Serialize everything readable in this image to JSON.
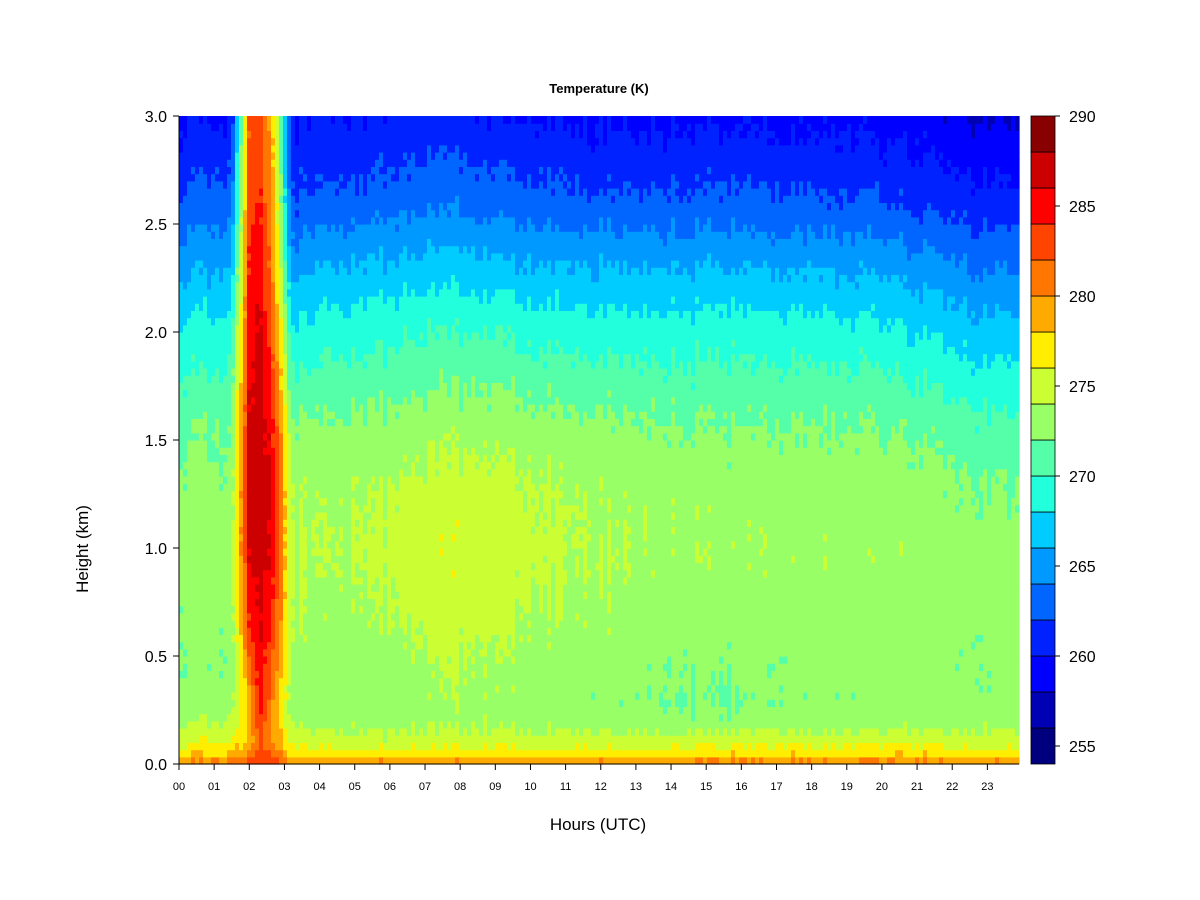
{
  "chart_data": {
    "type": "heatmap",
    "title": "Temperature (K)",
    "xlabel": "Hours (UTC)",
    "ylabel": "Height (km)",
    "x_ticks": [
      "00",
      "01",
      "02",
      "03",
      "04",
      "05",
      "06",
      "07",
      "08",
      "09",
      "10",
      "11",
      "12",
      "13",
      "14",
      "15",
      "16",
      "17",
      "18",
      "19",
      "20",
      "21",
      "22",
      "23"
    ],
    "y_ticks": [
      "0.0",
      "0.5",
      "1.0",
      "1.5",
      "2.0",
      "2.5",
      "3.0"
    ],
    "xlim": [
      0,
      23.9
    ],
    "ylim": [
      0,
      3.0
    ],
    "colorbar": {
      "ticks": [
        "255",
        "260",
        "265",
        "270",
        "275",
        "280",
        "285",
        "290"
      ],
      "range": [
        254,
        290
      ],
      "levels": [
        254,
        256,
        258,
        260,
        262,
        264,
        266,
        268,
        270,
        272,
        274,
        276,
        278,
        280,
        282,
        284,
        286,
        288,
        290
      ],
      "colors": [
        "#00007F",
        "#0000B4",
        "#0000FF",
        "#0022FF",
        "#0066FF",
        "#0099FF",
        "#00CCFF",
        "#22FFDD",
        "#55FFAA",
        "#99FF66",
        "#CCFF33",
        "#FFEE00",
        "#FFAA00",
        "#FF7700",
        "#FF4400",
        "#FF0000",
        "#CC0000",
        "#880000"
      ]
    },
    "temperature_profiles": {
      "height_km": [
        0.0,
        0.05,
        0.1,
        0.2,
        0.3,
        0.5,
        0.7,
        1.0,
        1.3,
        1.6,
        2.0,
        2.3,
        2.6,
        2.8,
        3.0
      ],
      "hours": [
        0,
        1.5,
        2.0,
        2.3,
        2.7,
        3.2,
        4,
        6,
        7,
        8,
        9,
        10,
        12,
        14,
        15.5,
        17,
        19,
        21,
        22.5,
        23.9
      ],
      "temperature_K": [
        [
          280.5,
          277.5,
          275.5,
          273.5,
          272.8,
          272.5,
          272.7,
          273.0,
          272.5,
          271.5,
          268.5,
          265.5,
          262.5,
          261.0,
          259.5
        ],
        [
          281.0,
          278.0,
          276.0,
          274.0,
          273.0,
          272.6,
          272.8,
          273.2,
          272.7,
          271.8,
          269.0,
          266.0,
          263.0,
          261.5,
          260.0
        ],
        [
          283.0,
          281.0,
          279.0,
          278.5,
          279.0,
          282.0,
          284.0,
          286.0,
          286.5,
          286.0,
          285.0,
          284.0,
          283.0,
          282.5,
          282.0
        ],
        [
          284.5,
          283.0,
          282.0,
          284.0,
          285.0,
          286.0,
          286.5,
          287.5,
          288.0,
          287.5,
          287.0,
          285.5,
          284.5,
          284.0,
          283.5
        ],
        [
          283.0,
          281.5,
          280.0,
          279.5,
          280.0,
          282.0,
          283.5,
          285.0,
          285.0,
          284.0,
          281.0,
          279.5,
          278.5,
          278.0,
          277.5
        ],
        [
          280.0,
          277.5,
          275.5,
          273.5,
          273.0,
          273.5,
          274.0,
          274.0,
          273.5,
          272.0,
          268.0,
          265.0,
          262.0,
          261.0,
          260.0
        ],
        [
          280.5,
          277.0,
          275.0,
          273.0,
          272.6,
          272.6,
          273.2,
          274.0,
          273.6,
          272.0,
          269.0,
          266.0,
          262.5,
          261.0,
          260.0
        ],
        [
          280.5,
          277.0,
          275.0,
          273.2,
          273.0,
          273.2,
          274.0,
          274.5,
          274.0,
          272.5,
          269.5,
          266.5,
          263.0,
          261.5,
          260.0
        ],
        [
          280.5,
          277.0,
          275.0,
          273.5,
          273.3,
          274.0,
          274.8,
          275.3,
          274.6,
          273.0,
          270.0,
          267.0,
          263.5,
          262.0,
          260.5
        ],
        [
          280.5,
          277.2,
          275.2,
          273.5,
          273.5,
          274.2,
          275.0,
          275.5,
          274.8,
          273.0,
          270.0,
          267.0,
          263.5,
          262.0,
          260.5
        ],
        [
          280.5,
          277.0,
          275.0,
          273.4,
          273.2,
          273.8,
          274.6,
          275.2,
          274.6,
          273.0,
          270.0,
          266.5,
          263.0,
          261.5,
          260.0
        ],
        [
          280.5,
          277.0,
          275.0,
          273.3,
          273.0,
          273.4,
          274.2,
          274.8,
          274.3,
          272.8,
          269.5,
          266.5,
          263.0,
          261.5,
          260.0
        ],
        [
          280.5,
          277.0,
          275.0,
          273.0,
          272.6,
          273.0,
          273.6,
          274.0,
          273.6,
          272.3,
          269.0,
          266.0,
          262.5,
          261.0,
          259.5
        ],
        [
          280.5,
          277.0,
          275.0,
          272.8,
          272.2,
          272.6,
          273.2,
          273.6,
          273.2,
          272.0,
          269.0,
          266.0,
          262.5,
          261.0,
          259.5
        ],
        [
          281.0,
          277.5,
          275.2,
          272.5,
          271.5,
          272.4,
          273.0,
          273.5,
          273.0,
          271.8,
          269.0,
          266.0,
          262.5,
          261.0,
          259.5
        ],
        [
          281.0,
          277.5,
          275.5,
          273.0,
          272.5,
          272.7,
          273.2,
          273.6,
          273.2,
          272.0,
          269.0,
          266.0,
          262.5,
          261.0,
          259.5
        ],
        [
          281.0,
          277.5,
          275.5,
          273.0,
          272.7,
          272.8,
          273.2,
          273.5,
          273.0,
          271.8,
          268.8,
          265.8,
          262.3,
          260.8,
          259.5
        ],
        [
          281.0,
          277.5,
          275.5,
          273.0,
          272.7,
          272.7,
          273.0,
          273.2,
          272.8,
          271.5,
          268.0,
          265.0,
          261.5,
          260.0,
          259.0
        ],
        [
          280.5,
          277.0,
          275.2,
          273.0,
          272.6,
          272.5,
          272.8,
          272.8,
          272.2,
          270.5,
          267.0,
          264.0,
          261.0,
          259.5,
          258.0
        ],
        [
          280.5,
          277.0,
          275.0,
          273.0,
          272.5,
          272.4,
          272.6,
          272.5,
          271.8,
          270.0,
          266.5,
          263.5,
          260.5,
          259.0,
          257.5
        ]
      ]
    }
  }
}
